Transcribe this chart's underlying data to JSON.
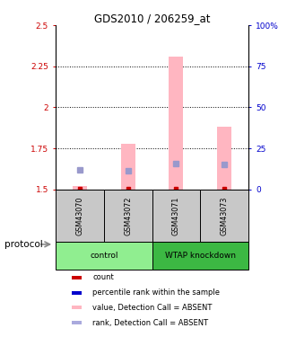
{
  "title": "GDS2010 / 206259_at",
  "samples": [
    "GSM43070",
    "GSM43072",
    "GSM43071",
    "GSM43073"
  ],
  "groups": [
    {
      "label": "control",
      "indices": [
        0,
        1
      ],
      "color": "#90EE90"
    },
    {
      "label": "WTAP knockdown",
      "indices": [
        2,
        3
      ],
      "color": "#3CB843"
    }
  ],
  "ylim_left": [
    1.5,
    2.5
  ],
  "ylim_right": [
    0,
    100
  ],
  "yticks_left": [
    1.5,
    1.75,
    2.0,
    2.25,
    2.5
  ],
  "ytick_labels_left": [
    "1.5",
    "1.75",
    "2",
    "2.25",
    "2.5"
  ],
  "yticks_right": [
    0,
    25,
    50,
    75,
    100
  ],
  "ytick_labels_right": [
    "0",
    "25",
    "50",
    "75",
    "100%"
  ],
  "hlines": [
    1.75,
    2.0,
    2.25
  ],
  "pink_bar_bottoms": [
    1.5,
    1.5,
    1.5,
    1.5
  ],
  "pink_bar_tops": [
    1.52,
    1.78,
    2.31,
    1.88
  ],
  "blue_sq_values": [
    1.62,
    1.615,
    1.655,
    1.65
  ],
  "bar_color": "#FFB6C1",
  "sq_color": "#9999CC",
  "red_dot_color": "#CC0000",
  "axis_label_color_left": "#CC0000",
  "axis_label_color_right": "#0000CC",
  "bg_color": "#FFFFFF",
  "plot_bg": "#FFFFFF",
  "legend_items": [
    {
      "color": "#CC0000",
      "label": "count"
    },
    {
      "color": "#0000CC",
      "label": "percentile rank within the sample"
    },
    {
      "color": "#FFB6C1",
      "label": "value, Detection Call = ABSENT"
    },
    {
      "color": "#AAAADD",
      "label": "rank, Detection Call = ABSENT"
    }
  ],
  "protocol_label": "protocol",
  "sample_bg_color": "#C8C8C8"
}
